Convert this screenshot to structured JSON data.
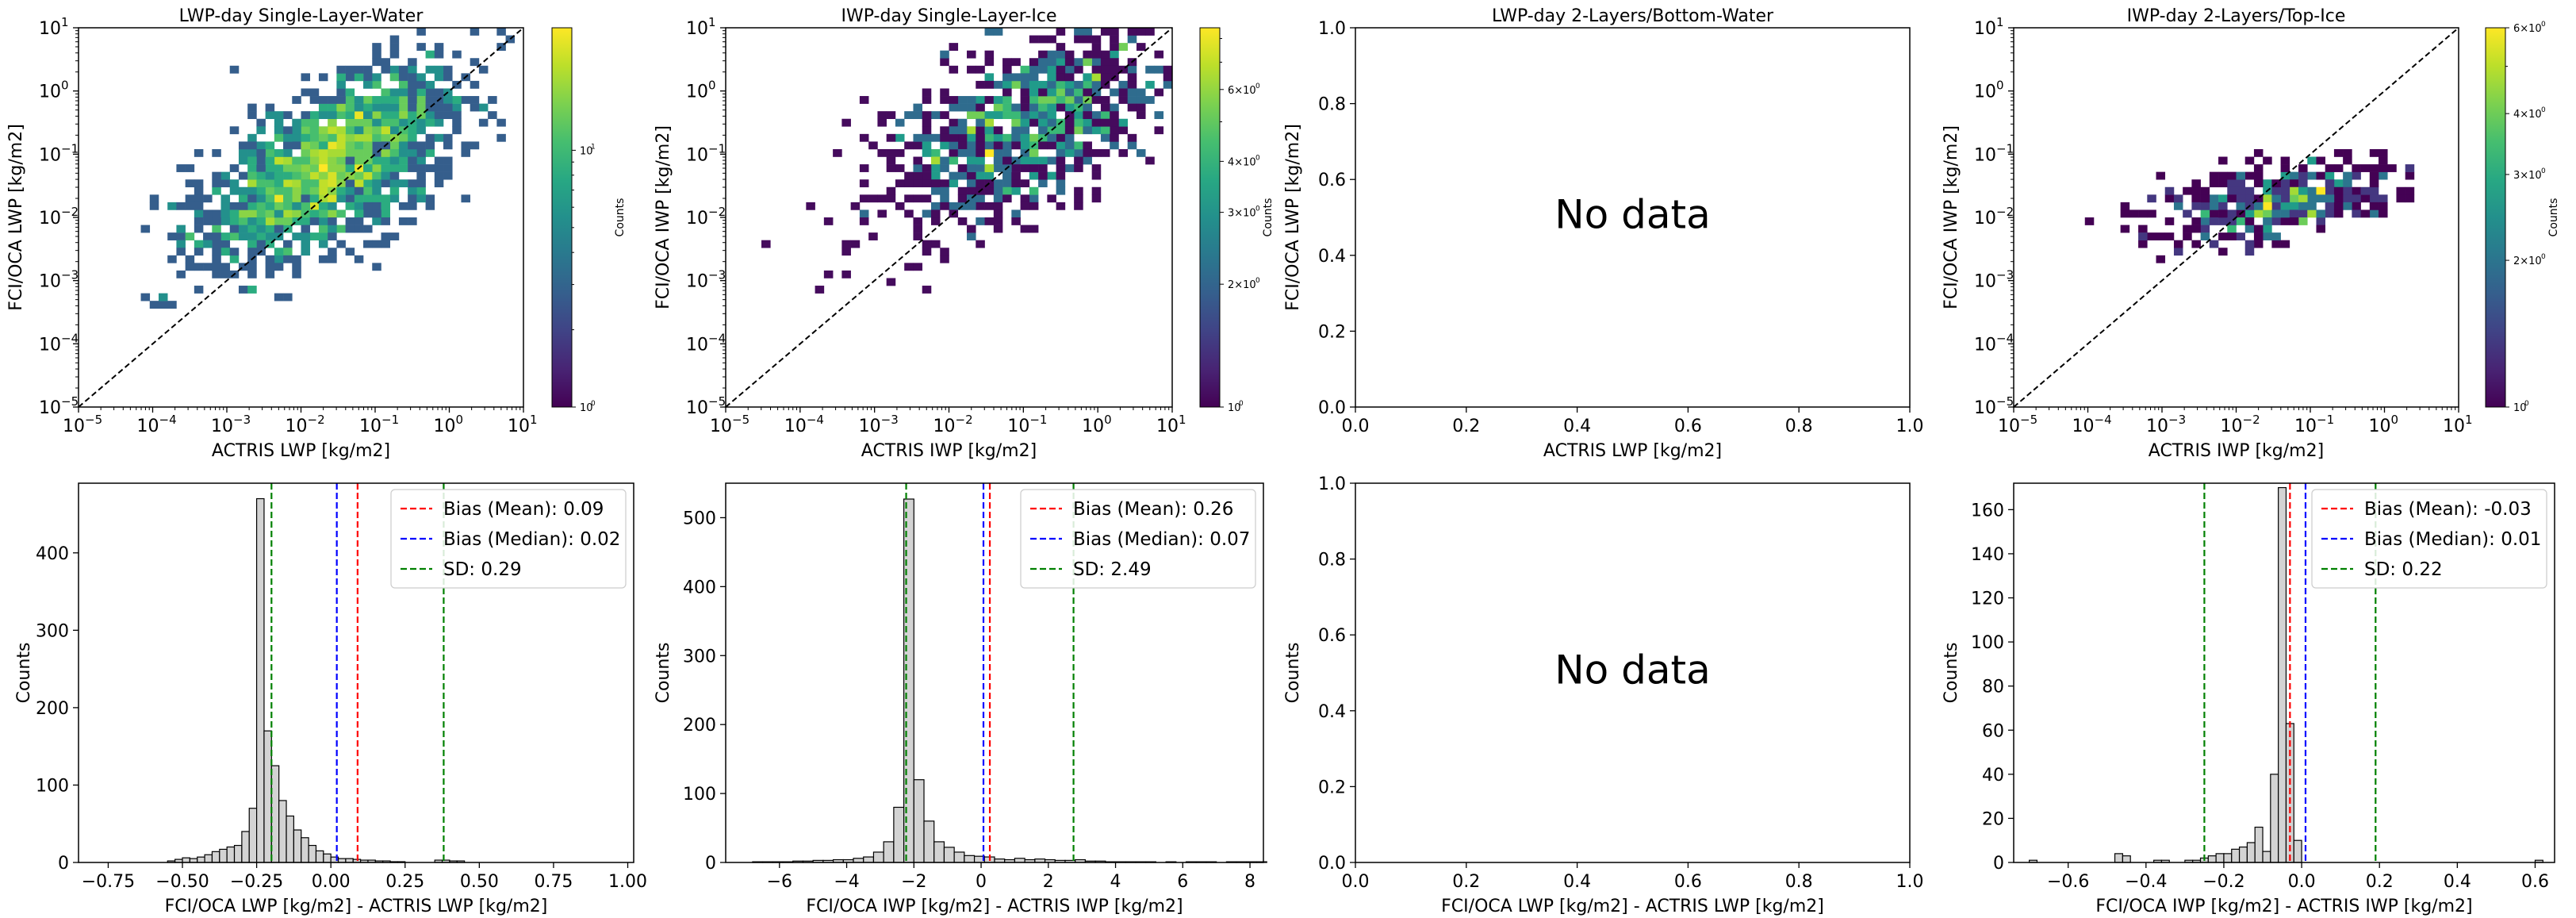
{
  "chart_data": [
    {
      "type": "heatmap",
      "title": "LWP-day Single-Layer-Water",
      "xlabel": "ACTRIS LWP [kg/m2]",
      "ylabel": "FCI/OCA LWP [kg/m2]",
      "scale": "log",
      "xlim": [
        1e-05,
        10
      ],
      "ylim": [
        1e-05,
        10
      ],
      "x_ticks": [
        "10",
        "-5",
        "10",
        "-4",
        "10",
        "-3",
        "10",
        "-2",
        "10",
        "-1",
        "10",
        "0",
        "10",
        "1"
      ],
      "colorbar": {
        "label": "Counts",
        "scale": "log",
        "ticks": [
          "10^0",
          "10^1"
        ],
        "range": [
          1,
          30
        ],
        "colormap": "viridis"
      },
      "reference_line": "y = x (dashed black)",
      "no_data_text": ""
    },
    {
      "type": "heatmap",
      "title": "IWP-day Single-Layer-Ice",
      "xlabel": "ACTRIS IWP [kg/m2]",
      "ylabel": "FCI/OCA IWP [kg/m2]",
      "scale": "log",
      "xlim": [
        1e-05,
        10
      ],
      "ylim": [
        1e-05,
        10
      ],
      "colorbar": {
        "label": "Counts",
        "scale": "log",
        "ticks": [
          "10^0",
          "2×10^0",
          "3×10^0",
          "4×10^0",
          "6×10^0"
        ],
        "range": [
          1,
          8.5
        ],
        "colormap": "viridis"
      },
      "reference_line": "y = x (dashed black)",
      "no_data_text": ""
    },
    {
      "type": "heatmap",
      "title": "LWP-day 2-Layers/Bottom-Water",
      "xlabel": "ACTRIS LWP [kg/m2]",
      "ylabel": "FCI/OCA LWP [kg/m2]",
      "scale": "linear",
      "xlim": [
        0,
        1
      ],
      "ylim": [
        0,
        1
      ],
      "x_ticks": [
        "0.0",
        "0.2",
        "0.4",
        "0.6",
        "0.8",
        "1.0"
      ],
      "y_ticks": [
        "0.0",
        "0.2",
        "0.4",
        "0.6",
        "0.8",
        "1.0"
      ],
      "no_data_text": "No data"
    },
    {
      "type": "heatmap",
      "title": "IWP-day 2-Layers/Top-Ice",
      "xlabel": "ACTRIS IWP [kg/m2]",
      "ylabel": "FCI/OCA IWP [kg/m2]",
      "scale": "log",
      "xlim": [
        1e-05,
        10
      ],
      "ylim": [
        1e-05,
        10
      ],
      "colorbar": {
        "label": "Counts",
        "scale": "log",
        "ticks": [
          "10^0",
          "2×10^0",
          "3×10^0",
          "4×10^0",
          "6×10^0"
        ],
        "range": [
          1,
          6
        ],
        "colormap": "viridis"
      },
      "reference_line": "y = x (dashed black)",
      "no_data_text": ""
    },
    {
      "type": "bar",
      "xlabel": "FCI/OCA LWP [kg/m2] - ACTRIS LWP [kg/m2]",
      "ylabel": "Counts",
      "xlim": [
        -0.85,
        1.02
      ],
      "ylim": [
        0,
        490
      ],
      "x_ticks": [
        "−0.75",
        "−0.50",
        "−0.25",
        "0.00",
        "0.25",
        "0.50",
        "0.75",
        "1.00"
      ],
      "x_tick_values": [
        -0.75,
        -0.5,
        -0.25,
        0,
        0.25,
        0.5,
        0.75,
        1.0
      ],
      "y_ticks": [
        "0",
        "100",
        "200",
        "300",
        "400"
      ],
      "y_tick_values": [
        0,
        100,
        200,
        300,
        400
      ],
      "bin_edges_start": -0.55,
      "bin_width": 0.025,
      "values": [
        2,
        4,
        6,
        5,
        7,
        10,
        14,
        17,
        20,
        22,
        40,
        70,
        470,
        170,
        125,
        80,
        60,
        42,
        32,
        22,
        15,
        11,
        7,
        5,
        5,
        4,
        3,
        3,
        2,
        2,
        1,
        1,
        0,
        0,
        0,
        0,
        3,
        3,
        2,
        2
      ],
      "lines": [
        {
          "label": "Bias (Mean): 0.09",
          "value": 0.09,
          "color": "#ff0000"
        },
        {
          "label": "Bias (Median): 0.02",
          "value": 0.02,
          "color": "#0000ff"
        },
        {
          "label": "SD: 0.29",
          "value": 0.29,
          "color": "#008000",
          "at": [
            -0.2,
            0.38
          ]
        }
      ],
      "legend": "top-right"
    },
    {
      "type": "bar",
      "xlabel": "FCI/OCA IWP [kg/m2] - ACTRIS IWP [kg/m2]",
      "ylabel": "Counts",
      "xlim": [
        -7.6,
        8.4
      ],
      "ylim": [
        0,
        550
      ],
      "x_ticks": [
        "−6",
        "−4",
        "−2",
        "0",
        "2",
        "4",
        "6",
        "8"
      ],
      "x_tick_values": [
        -6,
        -4,
        -2,
        0,
        2,
        4,
        6,
        8
      ],
      "y_ticks": [
        "0",
        "100",
        "200",
        "300",
        "400",
        "500"
      ],
      "y_tick_values": [
        0,
        100,
        200,
        300,
        400,
        500
      ],
      "bin_edges_start": -6.8,
      "bin_width": 0.3,
      "values": [
        1,
        1,
        1,
        1,
        2,
        2,
        3,
        3,
        4,
        4,
        6,
        8,
        15,
        30,
        80,
        527,
        120,
        60,
        30,
        22,
        15,
        10,
        9,
        8,
        5,
        4,
        6,
        4,
        5,
        4,
        3,
        3,
        4,
        2,
        2,
        1,
        1,
        1,
        1,
        1,
        0,
        1,
        0,
        1,
        1,
        1,
        0,
        1,
        1,
        1,
        1,
        0,
        0
      ],
      "lines": [
        {
          "label": "Bias (Mean): 0.26",
          "value": 0.26,
          "color": "#ff0000"
        },
        {
          "label": "Bias (Median): 0.07",
          "value": 0.07,
          "color": "#0000ff"
        },
        {
          "label": "SD: 2.49",
          "value": 2.49,
          "color": "#008000",
          "at": [
            -2.23,
            2.75
          ]
        }
      ],
      "legend": "top-right"
    },
    {
      "type": "bar",
      "xlabel": "FCI/OCA LWP [kg/m2] - ACTRIS LWP [kg/m2]",
      "ylabel": "Counts",
      "xlim": [
        0,
        1
      ],
      "ylim": [
        0,
        1
      ],
      "x_ticks": [
        "0.0",
        "0.2",
        "0.4",
        "0.6",
        "0.8",
        "1.0"
      ],
      "x_tick_values": [
        0,
        0.2,
        0.4,
        0.6,
        0.8,
        1.0
      ],
      "y_ticks": [
        "0.0",
        "0.2",
        "0.4",
        "0.6",
        "0.8",
        "1.0"
      ],
      "y_tick_values": [
        0,
        0.2,
        0.4,
        0.6,
        0.8,
        1.0
      ],
      "values": [],
      "lines": [],
      "no_data_text": "No data"
    },
    {
      "type": "bar",
      "xlabel": "FCI/OCA IWP [kg/m2] - ACTRIS IWP [kg/m2]",
      "ylabel": "Counts",
      "xlim": [
        -0.74,
        0.65
      ],
      "ylim": [
        0,
        172
      ],
      "x_ticks": [
        "−0.6",
        "−0.4",
        "−0.2",
        "0.0",
        "0.2",
        "0.4",
        "0.6"
      ],
      "x_tick_values": [
        -0.6,
        -0.4,
        -0.2,
        0.0,
        0.2,
        0.4,
        0.6
      ],
      "y_ticks": [
        "0",
        "20",
        "40",
        "60",
        "80",
        "100",
        "120",
        "140",
        "160"
      ],
      "y_tick_values": [
        0,
        20,
        40,
        60,
        80,
        100,
        120,
        140,
        160
      ],
      "bin_edges_start": -0.7,
      "bin_width": 0.02,
      "values": [
        1,
        0,
        0,
        0,
        0,
        0,
        0,
        0,
        0,
        0,
        0,
        4,
        3,
        0,
        0,
        0,
        1,
        1,
        0,
        0,
        1,
        1,
        2,
        3,
        4,
        4,
        6,
        7,
        9,
        16,
        5,
        40,
        170,
        63,
        10,
        0,
        0,
        0,
        0,
        0,
        0,
        0,
        0,
        0,
        0,
        0,
        0,
        0,
        0,
        0,
        0,
        0,
        0,
        0,
        0,
        0,
        0,
        0,
        0,
        0,
        0,
        0,
        0,
        0,
        0,
        1
      ],
      "lines": [
        {
          "label": "Bias (Mean): -0.03",
          "value": -0.03,
          "color": "#ff0000"
        },
        {
          "label": "Bias (Median): 0.01",
          "value": 0.01,
          "color": "#0000ff"
        },
        {
          "label": "SD: 0.22",
          "value": 0.22,
          "color": "#008000",
          "at": [
            -0.25,
            0.19
          ]
        }
      ],
      "legend": "top-right"
    }
  ]
}
